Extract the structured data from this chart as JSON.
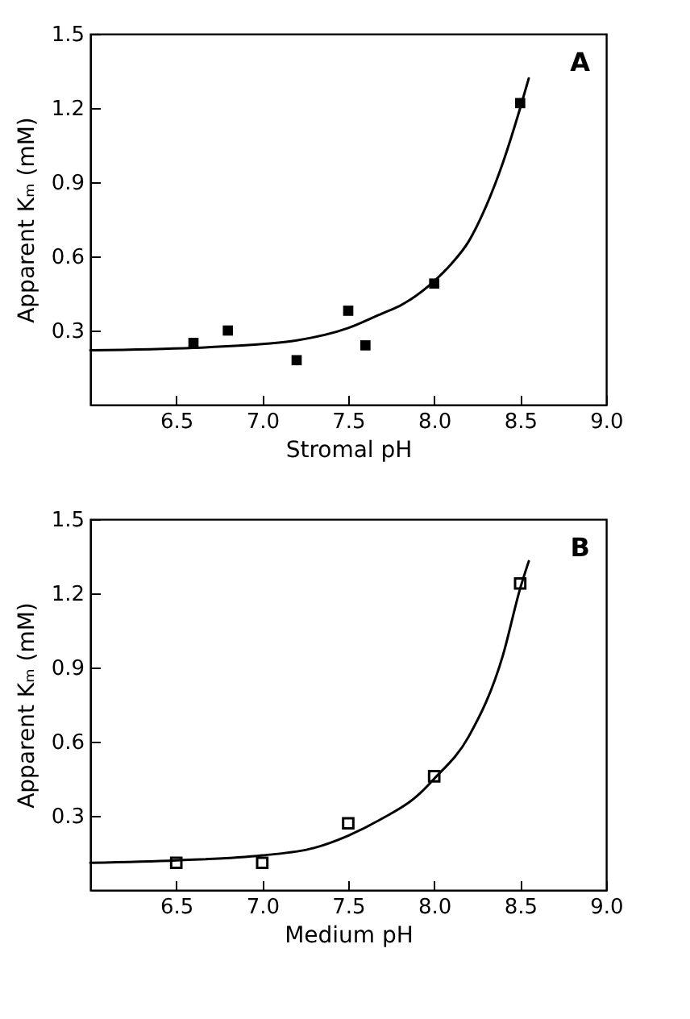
{
  "chart_data": [
    {
      "type": "scatter",
      "xlabel": "Stromal pH",
      "ylabel": "Apparent Kₘ (mM)",
      "annotations": [
        "A"
      ],
      "grid": false,
      "xlim": [
        6.0,
        9.0
      ],
      "ylim": [
        0,
        1.5
      ],
      "xticks": [
        6.5,
        {
          "value": 7.0,
          "label": "7.0"
        },
        7.5,
        {
          "value": 8.0,
          "label": "8.0"
        },
        8.5,
        {
          "value": 9.0,
          "label": "9.0"
        }
      ],
      "yticks": [
        0.3,
        0.6,
        0.9,
        1.2,
        1.5
      ],
      "series": [
        {
          "color": "#000000",
          "marker": "square",
          "x": [
            6.6,
            6.8,
            7.2,
            7.5,
            7.6,
            8.0,
            8.5
          ],
          "values": [
            0.25,
            0.3,
            0.18,
            0.38,
            0.24,
            0.49,
            1.22
          ]
        },
        {
          "type": "line",
          "color": "#000000",
          "marker": "none",
          "x": [
            6.0,
            6.6,
            7.0,
            7.2,
            7.5,
            7.7,
            7.8,
            8.0,
            8.1,
            8.2,
            8.3,
            8.4,
            8.5,
            8.55
          ],
          "values": [
            0.22,
            0.23,
            0.245,
            0.26,
            0.31,
            0.37,
            0.4,
            0.5,
            0.57,
            0.66,
            0.8,
            0.98,
            1.2,
            1.32
          ]
        }
      ]
    },
    {
      "type": "scatter",
      "xlabel": "Medium pH",
      "ylabel": "Apparent Kₘ (mM)",
      "annotations": [
        "B"
      ],
      "grid": false,
      "xlim": [
        6.0,
        9.0
      ],
      "ylim": [
        0,
        1.5
      ],
      "xticks": [
        6.5,
        {
          "value": 7.0,
          "label": "7.0"
        },
        7.5,
        {
          "value": 8.0,
          "label": "8.0"
        },
        8.5,
        {
          "value": 9.0,
          "label": "9.0"
        }
      ],
      "yticks": [
        0.3,
        0.6,
        0.9,
        1.2,
        1.5
      ],
      "series": [
        {
          "color": "#000000",
          "marker": "square",
          "x": [
            6.5,
            7.0,
            7.5,
            8.0,
            8.5
          ],
          "values": [
            0.11,
            0.11,
            0.27,
            0.46,
            1.24
          ]
        },
        {
          "type": "line",
          "color": "#000000",
          "marker": "none",
          "x": [
            6.0,
            6.5,
            7.0,
            7.3,
            7.5,
            7.7,
            7.9,
            8.0,
            8.2,
            8.4,
            8.5,
            8.55
          ],
          "values": [
            0.11,
            0.12,
            0.14,
            0.17,
            0.22,
            0.29,
            0.38,
            0.45,
            0.62,
            0.95,
            1.22,
            1.33
          ]
        }
      ]
    }
  ]
}
